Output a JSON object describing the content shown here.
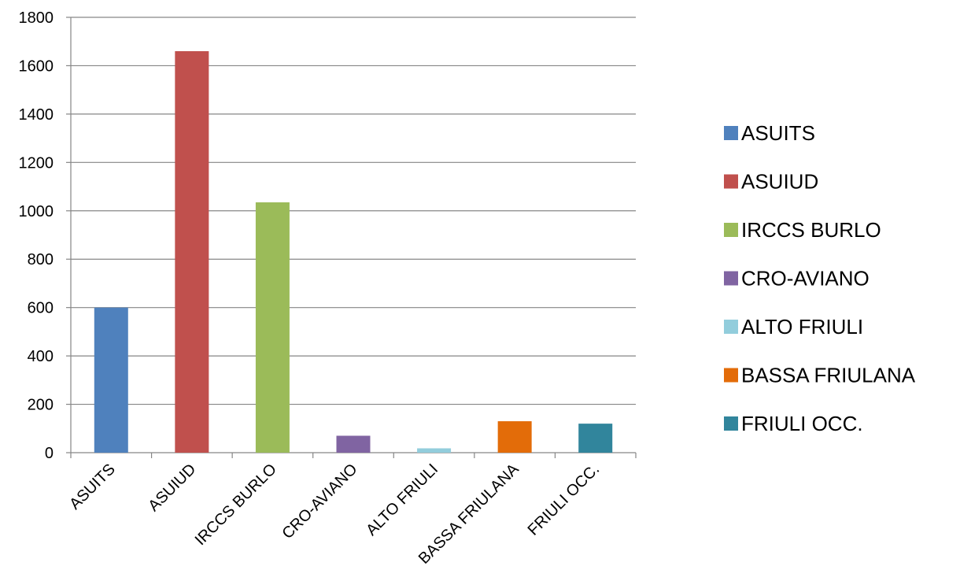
{
  "chart_data": {
    "type": "bar",
    "categories": [
      "ASUITS",
      "ASUIUD",
      "IRCCS BURLO",
      "CRO-AVIANO",
      "ALTO FRIULI",
      "BASSA FRIULANA",
      "FRIULI OCC."
    ],
    "values": [
      600,
      1660,
      1035,
      70,
      18,
      130,
      120
    ],
    "colors": [
      "#4F81BD",
      "#C0504D",
      "#9BBB59",
      "#8064A2",
      "#92CDDC",
      "#E36C09",
      "#31859C"
    ],
    "ylim": [
      0,
      1800
    ],
    "yticks": [
      0,
      200,
      400,
      600,
      800,
      1000,
      1200,
      1400,
      1600,
      1800
    ],
    "grid": true,
    "legend": {
      "position": "right",
      "entries": [
        "ASUITS",
        "ASUIUD",
        "IRCCS BURLO",
        "CRO-AVIANO",
        "ALTO FRIULI",
        "BASSA FRIULANA",
        "FRIULI OCC."
      ]
    },
    "title": "",
    "xlabel": "",
    "ylabel": ""
  }
}
